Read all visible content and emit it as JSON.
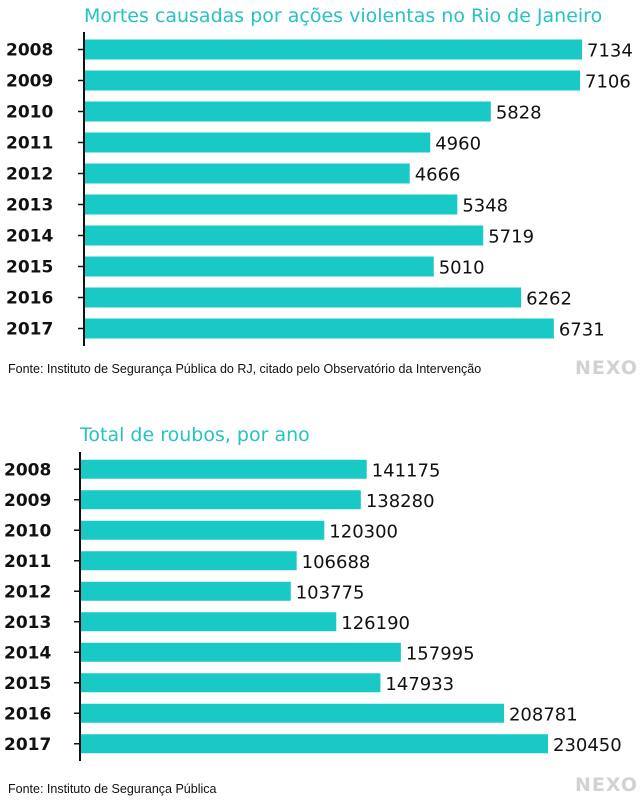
{
  "colors": {
    "bar": "#19c9c6",
    "title": "#27c2c2",
    "axis": "#111111",
    "logo": "#d2d2d2"
  },
  "chart_data": [
    {
      "type": "bar",
      "orientation": "horizontal",
      "title": "Mortes causadas por ações violentas no Rio de Janeiro",
      "categories": [
        "2008",
        "2009",
        "2010",
        "2011",
        "2012",
        "2013",
        "2014",
        "2015",
        "2016",
        "2017"
      ],
      "values": [
        7134,
        7106,
        5828,
        4960,
        4666,
        5348,
        5719,
        5010,
        6262,
        6731
      ],
      "xlim": [
        0,
        7134
      ],
      "grid": false,
      "source": "Fonte: Instituto de Segurança Pública do RJ, citado pelo Observatório da Intervenção",
      "logo": "NEXO"
    },
    {
      "type": "bar",
      "orientation": "horizontal",
      "title": "Total de roubos, por ano",
      "categories": [
        "2008",
        "2009",
        "2010",
        "2011",
        "2012",
        "2013",
        "2014",
        "2015",
        "2016",
        "2017"
      ],
      "values": [
        141175,
        138280,
        120300,
        106688,
        103775,
        126190,
        157995,
        147933,
        208781,
        230450
      ],
      "xlim": [
        0,
        230450
      ],
      "grid": false,
      "source": "Fonte: Instituto de Segurança Pública",
      "logo": "NEXO"
    }
  ]
}
